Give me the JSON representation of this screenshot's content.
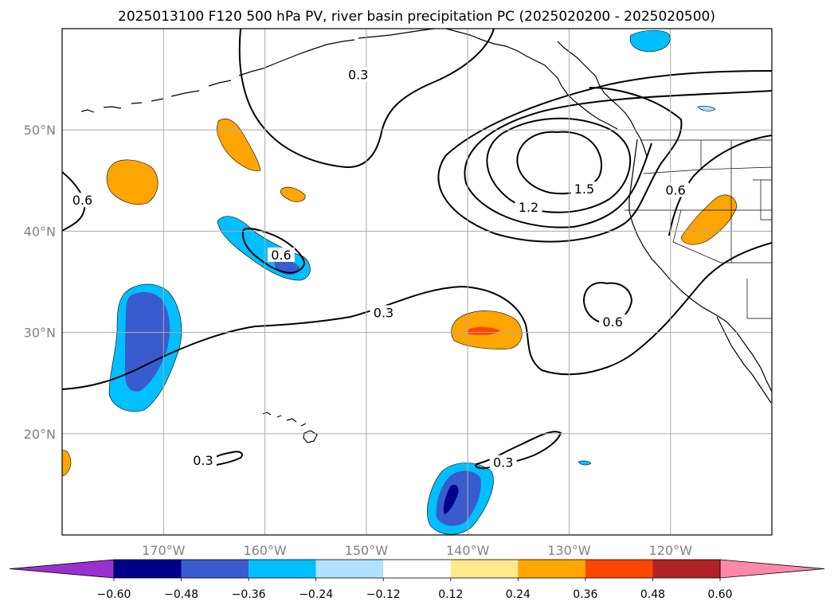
{
  "chart_data": {
    "type": "map",
    "title": "2025013100 F120 500 hPa PV, river basin precipitation PC (2025020200 - 2025020500)",
    "map_extent": {
      "lon": [
        -180,
        -110
      ],
      "lat": [
        10,
        60
      ]
    },
    "grid": true,
    "lon_ticks": [
      {
        "value": -170,
        "label": "170°W"
      },
      {
        "value": -160,
        "label": "160°W"
      },
      {
        "value": -150,
        "label": "150°W"
      },
      {
        "value": -140,
        "label": "140°W"
      },
      {
        "value": -130,
        "label": "130°W"
      },
      {
        "value": -120,
        "label": "120°W"
      }
    ],
    "lat_ticks": [
      {
        "value": 20,
        "label": "20°N"
      },
      {
        "value": 30,
        "label": "30°N"
      },
      {
        "value": 40,
        "label": "40°N"
      },
      {
        "value": 50,
        "label": "50°N"
      }
    ],
    "colorbar": {
      "levels": [
        -0.6,
        -0.48,
        -0.36,
        -0.24,
        -0.12,
        0.12,
        0.24,
        0.36,
        0.48,
        0.6
      ],
      "tick_labels": [
        "−0.60",
        "−0.48",
        "−0.36",
        "−0.24",
        "−0.12",
        "0.12",
        "0.24",
        "0.36",
        "0.48",
        "0.60"
      ],
      "colors": [
        "#9b30d0",
        "#00008b",
        "#3a5bcd",
        "#00bfff",
        "#b0e2ff",
        "#ffffff",
        "#ffe98a",
        "#ffa500",
        "#ff4500",
        "#b22222",
        "#ff88aa"
      ],
      "extend": "both"
    },
    "contour_labels": [
      {
        "text": "0.3",
        "lon": -150.8,
        "lat": 55.4
      },
      {
        "text": "0.6",
        "lon": -178.0,
        "lat": 43.0
      },
      {
        "text": "1.2",
        "lon": -134.0,
        "lat": 42.3
      },
      {
        "text": "1.5",
        "lon": -128.5,
        "lat": 44.1
      },
      {
        "text": "0.6",
        "lon": -119.5,
        "lat": 44.0
      },
      {
        "text": "0.6",
        "lon": -158.4,
        "lat": 37.6
      },
      {
        "text": "0.3",
        "lon": -148.3,
        "lat": 31.9
      },
      {
        "text": "0.6",
        "lon": -125.7,
        "lat": 31.0
      },
      {
        "text": "0.3",
        "lon": -166.1,
        "lat": 17.3
      },
      {
        "text": "0.3",
        "lon": -136.5,
        "lat": 17.1
      }
    ],
    "precip_pc_regions": [
      {
        "center": [
          -173,
          45.5
        ],
        "level": 0.3
      },
      {
        "center": [
          -162.5,
          48
        ],
        "level": 0.3
      },
      {
        "center": [
          -157.4,
          44
        ],
        "level": 0.3
      },
      {
        "center": [
          -160,
          38.5
        ],
        "level": -0.3
      },
      {
        "center": [
          -158.7,
          37.6
        ],
        "level": -0.42
      },
      {
        "center": [
          -172,
          29.5
        ],
        "level": -0.3
      },
      {
        "center": [
          -172,
          30
        ],
        "level": -0.42
      },
      {
        "center": [
          -139,
          30.3
        ],
        "level": 0.3
      },
      {
        "center": [
          -138.5,
          30.2
        ],
        "level": 0.42
      },
      {
        "center": [
          -117,
          40
        ],
        "level": 0.3
      },
      {
        "center": [
          -140.5,
          14
        ],
        "level": -0.3
      },
      {
        "center": [
          -141,
          14
        ],
        "level": -0.42
      },
      {
        "center": [
          -142.5,
          13.5
        ],
        "level": -0.54
      },
      {
        "center": [
          -125,
          58.5
        ],
        "level": -0.3
      },
      {
        "center": [
          -118,
          52.4
        ],
        "level": -0.2
      },
      {
        "center": [
          -128.5,
          16.9
        ],
        "level": -0.3
      },
      {
        "center": [
          -179.5,
          16.5
        ],
        "level": 0.3
      }
    ]
  }
}
